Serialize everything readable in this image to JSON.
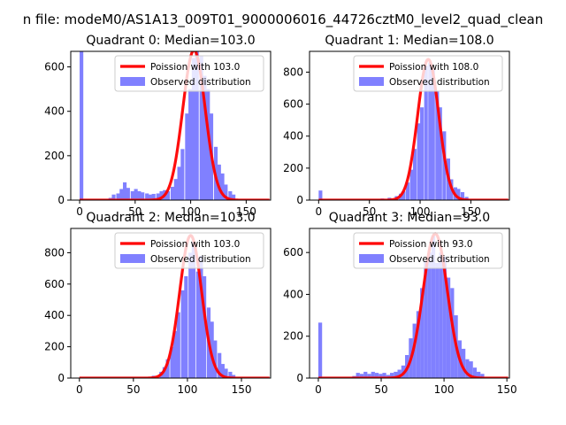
{
  "figure": {
    "suptitle": "n file: modeM0/AS1A13_009T01_9000006016_44726cztM0_level2_quad_clean"
  },
  "chart_data": [
    {
      "type": "bar",
      "title": "Quadrant 0: Median=103.0",
      "xlim": [
        -8,
        172
      ],
      "ylim": [
        0,
        670
      ],
      "xticks": [
        0,
        50,
        100,
        150
      ],
      "yticks": [
        0,
        200,
        400,
        600
      ],
      "legend": [
        "Poission with 103.0",
        "Observed distribution"
      ],
      "legend_position": "upper right",
      "median": 103,
      "poisson_peak": 675,
      "hist_color": "#8080ff",
      "fit_color": "#ff0000",
      "histogram_bin_width": 3.3,
      "histogram": [
        [
          0,
          670
        ],
        [
          26,
          10
        ],
        [
          29,
          25
        ],
        [
          33,
          30
        ],
        [
          36,
          50
        ],
        [
          39,
          80
        ],
        [
          42,
          55
        ],
        [
          46,
          40
        ],
        [
          49,
          50
        ],
        [
          52,
          40
        ],
        [
          55,
          35
        ],
        [
          59,
          30
        ],
        [
          62,
          25
        ],
        [
          65,
          28
        ],
        [
          69,
          30
        ],
        [
          72,
          40
        ],
        [
          75,
          45
        ],
        [
          78,
          40
        ],
        [
          82,
          60
        ],
        [
          85,
          95
        ],
        [
          88,
          150
        ],
        [
          91,
          230
        ],
        [
          95,
          390
        ],
        [
          98,
          500
        ],
        [
          101,
          640
        ],
        [
          104,
          670
        ],
        [
          108,
          650
        ],
        [
          111,
          560
        ],
        [
          114,
          500
        ],
        [
          117,
          390
        ],
        [
          121,
          240
        ],
        [
          124,
          160
        ],
        [
          127,
          120
        ],
        [
          130,
          70
        ],
        [
          134,
          40
        ],
        [
          137,
          25
        ]
      ]
    },
    {
      "type": "bar",
      "title": "Quadrant 1: Median=108.0",
      "xlim": [
        -9,
        188
      ],
      "ylim": [
        0,
        930
      ],
      "xticks": [
        0,
        50,
        100,
        150
      ],
      "yticks": [
        0,
        200,
        400,
        600,
        800
      ],
      "legend": [
        "Poission with 108.0",
        "Observed distribution"
      ],
      "legend_position": "upper right",
      "median": 108,
      "poisson_peak": 880,
      "hist_color": "#8080ff",
      "fit_color": "#ff0000",
      "histogram_bin_width": 3.6,
      "histogram": [
        [
          0,
          60
        ],
        [
          61,
          10
        ],
        [
          68,
          15
        ],
        [
          75,
          25
        ],
        [
          79,
          40
        ],
        [
          82,
          55
        ],
        [
          86,
          110
        ],
        [
          90,
          190
        ],
        [
          93,
          320
        ],
        [
          97,
          480
        ],
        [
          100,
          580
        ],
        [
          104,
          840
        ],
        [
          108,
          860
        ],
        [
          111,
          820
        ],
        [
          115,
          680
        ],
        [
          118,
          580
        ],
        [
          122,
          430
        ],
        [
          126,
          260
        ],
        [
          129,
          130
        ],
        [
          133,
          80
        ],
        [
          136,
          70
        ],
        [
          140,
          50
        ],
        [
          144,
          20
        ]
      ]
    },
    {
      "type": "bar",
      "title": "Quadrant 2: Median=103.0",
      "xlim": [
        -8,
        177
      ],
      "ylim": [
        0,
        955
      ],
      "xticks": [
        0,
        50,
        100,
        150
      ],
      "yticks": [
        0,
        200,
        400,
        600,
        800
      ],
      "legend": [
        "Poission with 103.0",
        "Observed distribution"
      ],
      "legend_position": "upper right",
      "median": 103,
      "poisson_peak": 910,
      "hist_color": "#8080ff",
      "fit_color": "#ff0000",
      "histogram_bin_width": 3.4,
      "histogram": [
        [
          60,
          5
        ],
        [
          67,
          15
        ],
        [
          74,
          40
        ],
        [
          77,
          70
        ],
        [
          80,
          120
        ],
        [
          84,
          200
        ],
        [
          87,
          300
        ],
        [
          90,
          420
        ],
        [
          94,
          560
        ],
        [
          97,
          650
        ],
        [
          101,
          800
        ],
        [
          104,
          870
        ],
        [
          108,
          680
        ],
        [
          111,
          780
        ],
        [
          114,
          650
        ],
        [
          118,
          450
        ],
        [
          121,
          360
        ],
        [
          124,
          240
        ],
        [
          128,
          160
        ],
        [
          131,
          90
        ],
        [
          134,
          60
        ],
        [
          138,
          40
        ],
        [
          141,
          20
        ]
      ]
    },
    {
      "type": "bar",
      "title": "Quadrant 3: Median=93.0",
      "xlim": [
        -7,
        152
      ],
      "ylim": [
        0,
        715
      ],
      "xticks": [
        0,
        50,
        100,
        150
      ],
      "yticks": [
        0,
        200,
        400,
        600
      ],
      "legend": [
        "Poission with 93.0",
        "Observed distribution"
      ],
      "legend_position": "upper right",
      "median": 93,
      "poisson_peak": 690,
      "hist_color": "#8080ff",
      "fit_color": "#ff0000",
      "histogram_bin_width": 3.0,
      "histogram": [
        [
          0,
          265
        ],
        [
          27,
          10
        ],
        [
          30,
          25
        ],
        [
          33,
          20
        ],
        [
          36,
          30
        ],
        [
          39,
          20
        ],
        [
          42,
          30
        ],
        [
          45,
          25
        ],
        [
          48,
          20
        ],
        [
          51,
          25
        ],
        [
          54,
          15
        ],
        [
          57,
          25
        ],
        [
          60,
          30
        ],
        [
          63,
          40
        ],
        [
          66,
          60
        ],
        [
          69,
          110
        ],
        [
          72,
          190
        ],
        [
          75,
          260
        ],
        [
          78,
          320
        ],
        [
          81,
          430
        ],
        [
          84,
          560
        ],
        [
          87,
          600
        ],
        [
          90,
          680
        ],
        [
          93,
          550
        ],
        [
          96,
          600
        ],
        [
          99,
          580
        ],
        [
          102,
          480
        ],
        [
          105,
          430
        ],
        [
          108,
          300
        ],
        [
          111,
          180
        ],
        [
          114,
          140
        ],
        [
          117,
          90
        ],
        [
          120,
          80
        ],
        [
          123,
          50
        ],
        [
          126,
          30
        ],
        [
          129,
          20
        ]
      ]
    }
  ]
}
